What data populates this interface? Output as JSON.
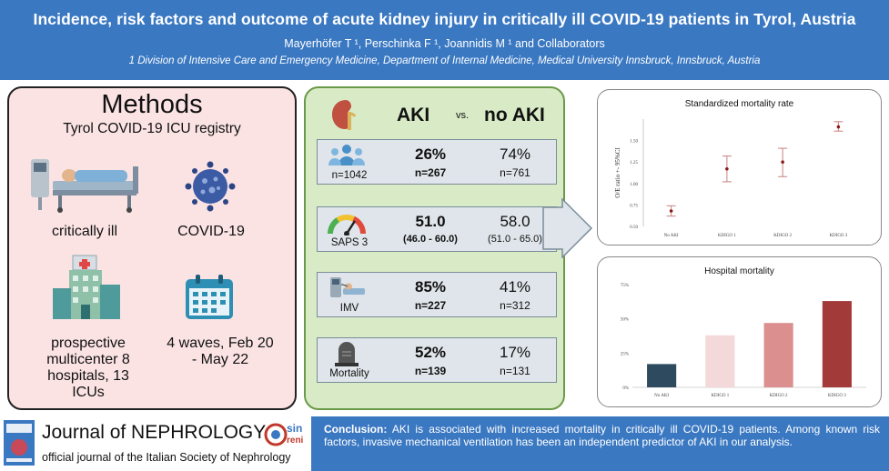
{
  "header": {
    "title": "Incidence, risk factors and outcome of acute kidney injury in critically ill COVID-19 patients in Tyrol, Austria",
    "authors": "Mayerhöfer T ¹, Perschinka F ¹, Joannidis M ¹ and Collaborators",
    "affiliation": "1 Division of Intensive Care and Emergency Medicine, Department of Internal Medicine, Medical University Innsbruck, Innsbruck, Austria"
  },
  "methods": {
    "title": "Methods",
    "subtitle": "Tyrol COVID-19 ICU registry",
    "items": [
      {
        "label": "critically ill",
        "icon": "icu-bed-icon"
      },
      {
        "label": "COVID-19",
        "icon": "virus-icon"
      },
      {
        "label": "prospective multicenter 8 hospitals, 13 ICUs",
        "icon": "hospital-icon"
      },
      {
        "label": "4 waves, Feb 20 - May 22",
        "icon": "calendar-icon"
      }
    ]
  },
  "comparison": {
    "col_aki": "AKI",
    "col_vs": "vs.",
    "col_noaki": "no AKI",
    "rows": [
      {
        "label": "n=1042",
        "icon": "people-icon",
        "aki_value": "26%",
        "aki_sub": "n=267",
        "noaki_value": "74%",
        "noaki_sub": "n=761"
      },
      {
        "label": "SAPS 3",
        "icon": "gauge-icon",
        "aki_value": "51.0",
        "aki_sub": "(46.0 - 60.0)",
        "noaki_value": "58.0",
        "noaki_sub": "(51.0 - 65.0)"
      },
      {
        "label": "IMV",
        "icon": "ventilator-icon",
        "aki_value": "85%",
        "aki_sub": "n=227",
        "noaki_value": "41%",
        "noaki_sub": "n=312"
      },
      {
        "label": "Mortality",
        "icon": "tombstone-icon",
        "aki_value": "52%",
        "aki_sub": "n=139",
        "noaki_value": "17%",
        "noaki_sub": "n=131"
      }
    ]
  },
  "chart_data": [
    {
      "type": "scatter",
      "title": "Standardized mortality rate",
      "ylabel": "O/E ratio +- 95%CI",
      "categories": [
        "No AKI",
        "KDIGO 1",
        "KDIGO 2",
        "KDIGO 3"
      ],
      "values": [
        0.68,
        1.17,
        1.25,
        1.66
      ],
      "ci_low": [
        0.62,
        1.02,
        1.08,
        1.61
      ],
      "ci_high": [
        0.74,
        1.32,
        1.41,
        1.72
      ],
      "yticks": [
        "0.50",
        "0.75",
        "1.00",
        "1.25",
        "1.50"
      ],
      "ylim": [
        0.5,
        1.75
      ],
      "colors": {
        "point": "#8b1a1a",
        "errorbar": "#c98080"
      }
    },
    {
      "type": "bar",
      "title": "Hospital mortality",
      "categories": [
        "No AKI",
        "KDIGO 1",
        "KDIGO 2",
        "KDIGO 3"
      ],
      "values": [
        17,
        38,
        47,
        63
      ],
      "yticks": [
        "0%",
        "25%",
        "50%",
        "75%"
      ],
      "ylim": [
        0,
        75
      ],
      "colors": [
        "#2e4a5f",
        "#f3d9d9",
        "#dc8f8f",
        "#a33a3a"
      ]
    }
  ],
  "footer": {
    "journal_name": "Journal of NEPHROLOGY",
    "journal_sub": "official journal of the Italian Society of Nephrology",
    "sin_logo": "sin",
    "conclusion_label": "Conclusion:",
    "conclusion_text": "AKI is associated with increased mortality in critically ill COVID-19 patients. Among known risk factors, invasive mechanical ventilation has been an independent predictor of AKI in our analysis."
  }
}
